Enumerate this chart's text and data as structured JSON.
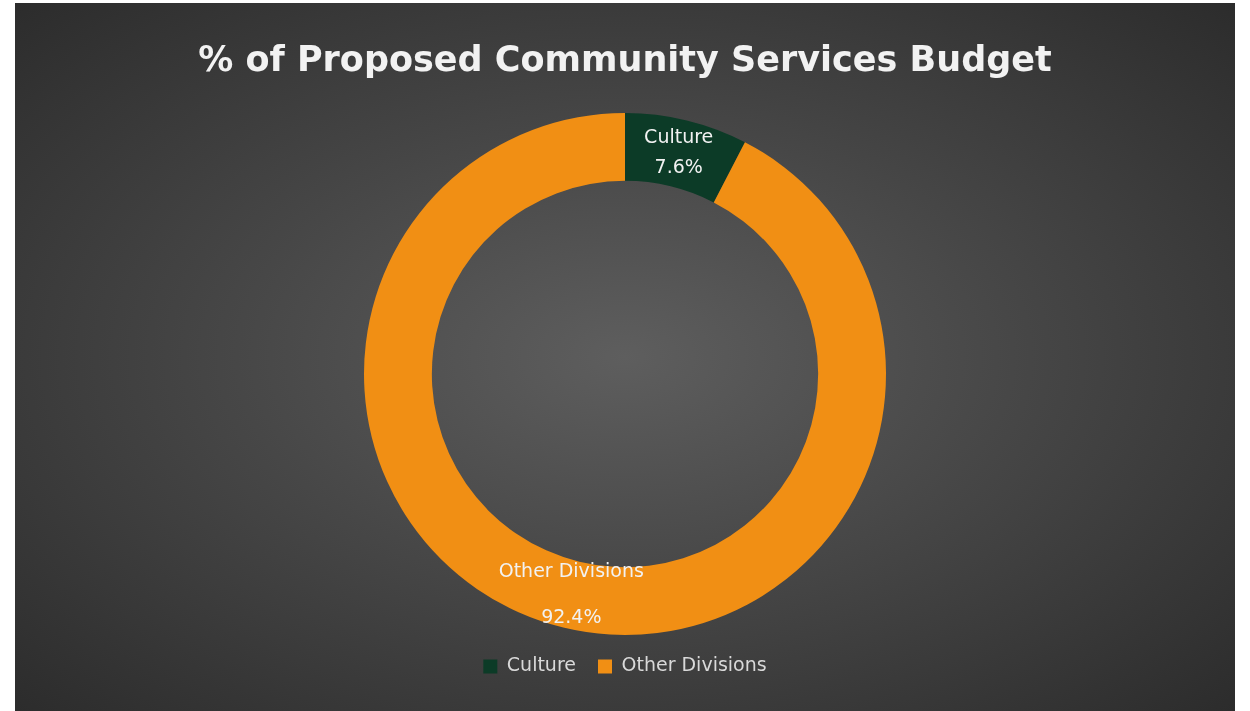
{
  "chart_data": {
    "type": "donut",
    "title": "% of Proposed Community Services Budget",
    "categories": [
      "Culture",
      "Other Divisions"
    ],
    "values": [
      7.6,
      92.4
    ],
    "value_labels": [
      "7.6%",
      "92.4%"
    ],
    "colors": [
      "#0c3b27",
      "#f18f14"
    ],
    "legend": "bottom"
  }
}
